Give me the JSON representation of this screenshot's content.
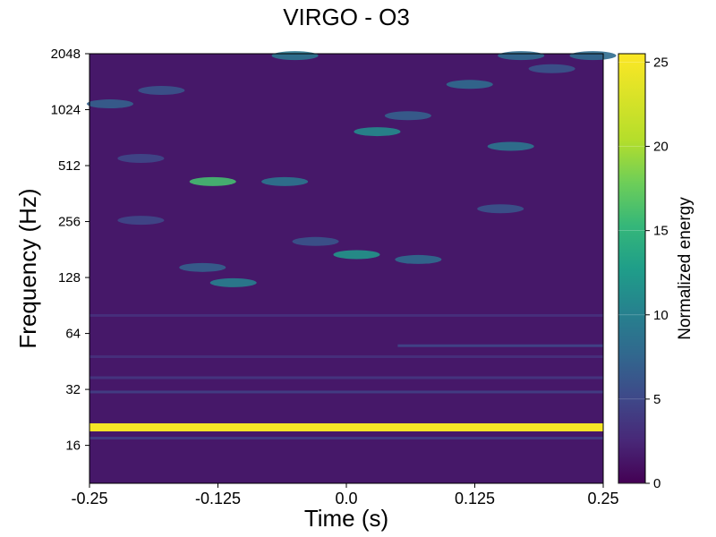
{
  "chart_data": {
    "type": "heatmap",
    "title": "VIRGO - O3",
    "xlabel": "Time (s)",
    "ylabel": "Frequency (Hz)",
    "xlim": [
      -0.25,
      0.25
    ],
    "ylim": [
      10,
      2048
    ],
    "yscale": "log2",
    "x_ticks": [
      -0.25,
      -0.125,
      0.0,
      0.125,
      0.25
    ],
    "x_tick_labels": [
      "-0.25",
      "-0.125",
      "0.0",
      "0.125",
      "0.25"
    ],
    "y_ticks": [
      16,
      32,
      64,
      128,
      256,
      512,
      1024,
      2048
    ],
    "y_tick_labels": [
      "16",
      "32",
      "64",
      "128",
      "256",
      "512",
      "1024",
      "2048"
    ],
    "colorbar": {
      "label": "Normalized energy",
      "range": [
        0,
        25.5
      ],
      "ticks": [
        0,
        5,
        10,
        15,
        20,
        25
      ],
      "tick_labels": [
        "0",
        "5",
        "10",
        "15",
        "20",
        "25"
      ],
      "colormap": "viridis"
    },
    "background_energy": 1.5,
    "features": [
      {
        "kind": "line",
        "freq_hz": 20,
        "energy": 25,
        "t_start": -0.25,
        "t_end": 0.25
      },
      {
        "kind": "line",
        "freq_hz": 17.5,
        "energy": 4,
        "t_start": -0.25,
        "t_end": 0.25
      },
      {
        "kind": "line",
        "freq_hz": 31,
        "energy": 4,
        "t_start": -0.25,
        "t_end": 0.25
      },
      {
        "kind": "line",
        "freq_hz": 37,
        "energy": 3.5,
        "t_start": -0.25,
        "t_end": 0.25
      },
      {
        "kind": "line",
        "freq_hz": 48,
        "energy": 3,
        "t_start": -0.25,
        "t_end": 0.25
      },
      {
        "kind": "line",
        "freq_hz": 55,
        "energy": 4.5,
        "t_start": 0.05,
        "t_end": 0.25
      },
      {
        "kind": "line",
        "freq_hz": 80,
        "energy": 3,
        "t_start": -0.25,
        "t_end": 0.25
      },
      {
        "kind": "blob",
        "t": -0.13,
        "freq_hz": 420,
        "energy": 16
      },
      {
        "kind": "blob",
        "t": -0.06,
        "freq_hz": 420,
        "energy": 9
      },
      {
        "kind": "blob",
        "t": 0.01,
        "freq_hz": 170,
        "energy": 12
      },
      {
        "kind": "blob",
        "t": 0.07,
        "freq_hz": 160,
        "energy": 8
      },
      {
        "kind": "blob",
        "t": -0.11,
        "freq_hz": 120,
        "energy": 10
      },
      {
        "kind": "blob",
        "t": -0.14,
        "freq_hz": 145,
        "energy": 7
      },
      {
        "kind": "blob",
        "t": -0.03,
        "freq_hz": 200,
        "energy": 6
      },
      {
        "kind": "blob",
        "t": 0.03,
        "freq_hz": 780,
        "energy": 11
      },
      {
        "kind": "blob",
        "t": 0.16,
        "freq_hz": 650,
        "energy": 9
      },
      {
        "kind": "blob",
        "t": 0.12,
        "freq_hz": 1400,
        "energy": 8
      },
      {
        "kind": "blob",
        "t": 0.06,
        "freq_hz": 950,
        "energy": 7
      },
      {
        "kind": "blob",
        "t": -0.05,
        "freq_hz": 2000,
        "energy": 9
      },
      {
        "kind": "blob",
        "t": 0.17,
        "freq_hz": 2000,
        "energy": 8
      },
      {
        "kind": "blob",
        "t": 0.24,
        "freq_hz": 2000,
        "energy": 8
      },
      {
        "kind": "blob",
        "t": -0.23,
        "freq_hz": 1100,
        "energy": 7
      },
      {
        "kind": "blob",
        "t": -0.18,
        "freq_hz": 1300,
        "energy": 6
      },
      {
        "kind": "blob",
        "t": 0.2,
        "freq_hz": 1700,
        "energy": 6
      },
      {
        "kind": "blob",
        "t": -0.2,
        "freq_hz": 560,
        "energy": 5
      },
      {
        "kind": "blob",
        "t": 0.15,
        "freq_hz": 300,
        "energy": 6
      },
      {
        "kind": "blob",
        "t": -0.2,
        "freq_hz": 260,
        "energy": 5
      }
    ]
  }
}
